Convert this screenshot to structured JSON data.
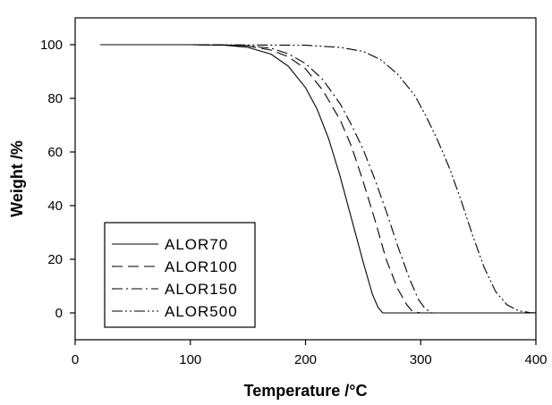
{
  "chart_data": {
    "type": "line",
    "xlabel": "Temperature /°C",
    "ylabel": "Weight /%",
    "xlim": [
      0,
      400
    ],
    "ylim": [
      -10,
      110
    ],
    "x_ticks": [
      0,
      100,
      200,
      300,
      400
    ],
    "y_ticks": [
      0,
      20,
      40,
      60,
      80,
      100
    ],
    "grid": false,
    "legend_position": "bottom-left",
    "series": [
      {
        "name": "ALOR70",
        "dash": "solid",
        "points": [
          [
            22,
            100
          ],
          [
            100,
            100
          ],
          [
            130,
            99.8
          ],
          [
            150,
            99
          ],
          [
            170,
            96.5
          ],
          [
            185,
            92
          ],
          [
            200,
            84
          ],
          [
            210,
            76
          ],
          [
            220,
            65
          ],
          [
            230,
            51
          ],
          [
            240,
            35
          ],
          [
            250,
            19
          ],
          [
            258,
            7
          ],
          [
            263,
            2
          ],
          [
            267,
            0
          ],
          [
            300,
            0
          ],
          [
            400,
            0
          ]
        ]
      },
      {
        "name": "ALOR100",
        "dash": "dash",
        "points": [
          [
            22,
            100
          ],
          [
            100,
            100
          ],
          [
            130,
            99.9
          ],
          [
            150,
            99.5
          ],
          [
            170,
            98
          ],
          [
            185,
            95.5
          ],
          [
            200,
            91
          ],
          [
            215,
            83
          ],
          [
            230,
            72
          ],
          [
            240,
            62
          ],
          [
            250,
            49
          ],
          [
            260,
            35
          ],
          [
            270,
            20
          ],
          [
            280,
            9
          ],
          [
            288,
            3
          ],
          [
            293,
            0.5
          ],
          [
            300,
            0
          ],
          [
            400,
            0
          ]
        ]
      },
      {
        "name": "ALOR150",
        "dash": "dashdot",
        "points": [
          [
            22,
            100
          ],
          [
            100,
            100
          ],
          [
            130,
            99.9
          ],
          [
            150,
            99.6
          ],
          [
            170,
            98.7
          ],
          [
            185,
            96.6
          ],
          [
            200,
            93
          ],
          [
            215,
            87
          ],
          [
            230,
            78
          ],
          [
            240,
            70
          ],
          [
            250,
            61
          ],
          [
            260,
            50
          ],
          [
            270,
            38
          ],
          [
            280,
            25
          ],
          [
            290,
            13
          ],
          [
            298,
            5
          ],
          [
            304,
            1.5
          ],
          [
            310,
            0
          ],
          [
            400,
            0
          ]
        ]
      },
      {
        "name": "ALOR500",
        "dash": "dashdotdot",
        "points": [
          [
            22,
            100
          ],
          [
            100,
            100
          ],
          [
            200,
            99.8
          ],
          [
            230,
            99
          ],
          [
            250,
            97.5
          ],
          [
            265,
            94.5
          ],
          [
            280,
            89
          ],
          [
            295,
            81
          ],
          [
            305,
            73
          ],
          [
            315,
            64
          ],
          [
            325,
            54
          ],
          [
            335,
            42
          ],
          [
            345,
            29
          ],
          [
            355,
            17
          ],
          [
            365,
            8
          ],
          [
            375,
            3
          ],
          [
            385,
            0.8
          ],
          [
            395,
            0.1
          ],
          [
            400,
            0
          ]
        ]
      }
    ]
  }
}
